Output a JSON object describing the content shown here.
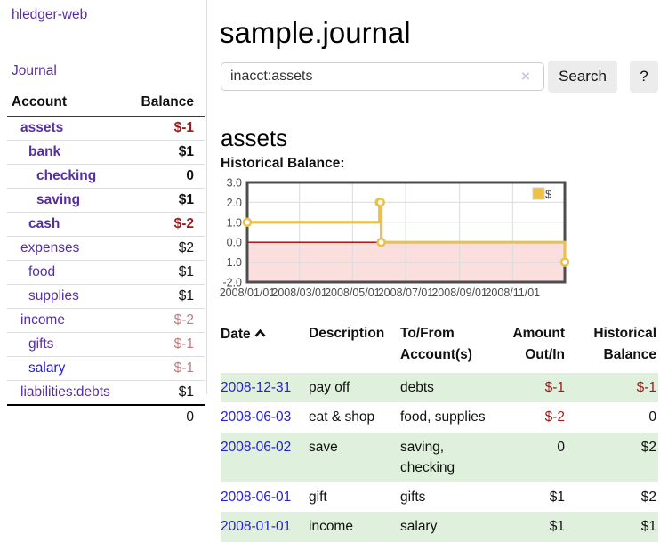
{
  "app_title": "hledger-web",
  "colors": {
    "link_purple": "#55309E",
    "link_blue": "#2721CE",
    "negative_strong": "#9B1C1C",
    "negative_soft": "#C17D7D",
    "row_green": "#DFF0DC",
    "button_gray": "#ECECEC"
  },
  "sidebar": {
    "journal_link": "Journal",
    "columns": {
      "account": "Account",
      "balance": "Balance"
    },
    "accounts": [
      {
        "name": "assets",
        "depth": 0,
        "bold": true,
        "balance": "$-1",
        "balance_class": "neg"
      },
      {
        "name": "bank",
        "depth": 1,
        "bold": true,
        "balance": "$1",
        "balance_class": "pos"
      },
      {
        "name": "checking",
        "depth": 2,
        "bold": true,
        "balance": "0",
        "balance_class": "pos"
      },
      {
        "name": "saving",
        "depth": 2,
        "bold": true,
        "balance": "$1",
        "balance_class": "pos"
      },
      {
        "name": "cash",
        "depth": 1,
        "bold": true,
        "balance": "$-2",
        "balance_class": "neg"
      },
      {
        "name": "expenses",
        "depth": 0,
        "bold": false,
        "balance": "$2",
        "balance_class": "pos"
      },
      {
        "name": "food",
        "depth": 1,
        "bold": false,
        "balance": "$1",
        "balance_class": "pos"
      },
      {
        "name": "supplies",
        "depth": 1,
        "bold": false,
        "balance": "$1",
        "balance_class": "pos"
      },
      {
        "name": "income",
        "depth": 0,
        "bold": false,
        "balance": "$-2",
        "balance_class": "neg-soft"
      },
      {
        "name": "gifts",
        "depth": 1,
        "bold": false,
        "balance": "$-1",
        "balance_class": "neg-soft"
      },
      {
        "name": "salary",
        "depth": 1,
        "bold": false,
        "balance": "$-1",
        "balance_class": "neg-soft",
        "link_blue": true
      },
      {
        "name": "liabilities:debts",
        "depth": 0,
        "bold": false,
        "balance": "$1",
        "balance_class": "pos"
      }
    ],
    "total": "0"
  },
  "main": {
    "title": "sample.journal",
    "search": {
      "value": "inacct:assets",
      "clear_icon": "×",
      "search_button": "Search",
      "help_button": "?"
    },
    "account_heading": "assets",
    "chart_label": "Historical Balance:",
    "register": {
      "columns": [
        "Date",
        "Description",
        "To/From Account(s)",
        "Amount Out/In",
        "Historical Balance"
      ],
      "rows": [
        {
          "date": "2008-12-31",
          "description": "pay off",
          "accounts": "debts",
          "amount": "$-1",
          "amount_class": "neg",
          "balance": "$-1",
          "balance_class": "neg",
          "green": true
        },
        {
          "date": "2008-06-03",
          "description": "eat & shop",
          "accounts": "food, supplies",
          "amount": "$-2",
          "amount_class": "neg",
          "balance": "0",
          "balance_class": "pos",
          "green": false
        },
        {
          "date": "2008-06-02",
          "description": "save",
          "accounts": "saving, checking",
          "amount": "0",
          "amount_class": "pos",
          "balance": "$2",
          "balance_class": "pos",
          "green": true
        },
        {
          "date": "2008-06-01",
          "description": "gift",
          "accounts": "gifts",
          "amount": "$1",
          "amount_class": "pos",
          "balance": "$2",
          "balance_class": "pos",
          "green": false
        },
        {
          "date": "2008-01-01",
          "description": "income",
          "accounts": "salary",
          "amount": "$1",
          "amount_class": "pos",
          "balance": "$1",
          "balance_class": "pos",
          "green": true
        }
      ]
    }
  },
  "chart_data": {
    "type": "line",
    "title": "Historical Balance",
    "step": true,
    "x": [
      "2008-01-01",
      "2008-06-01",
      "2008-06-02",
      "2008-06-03",
      "2008-12-31"
    ],
    "values": [
      1,
      2,
      2,
      0,
      -1
    ],
    "xlim": [
      "2008-01-01",
      "2008-12-31"
    ],
    "ylim": [
      -2,
      3
    ],
    "yticks": [
      {
        "v": 3,
        "label": "3.0"
      },
      {
        "v": 2,
        "label": "2.0"
      },
      {
        "v": 1,
        "label": "1.0"
      },
      {
        "v": 0,
        "label": "0.0"
      },
      {
        "v": -1,
        "label": "-1.0"
      },
      {
        "v": -2,
        "label": "-2.0"
      }
    ],
    "xticks": [
      {
        "date": "2008-01-01",
        "label": "2008/01/01"
      },
      {
        "date": "2008-03-01",
        "label": "2008/03/01"
      },
      {
        "date": "2008-05-01",
        "label": "2008/05/01"
      },
      {
        "date": "2008-07-01",
        "label": "2008/07/01"
      },
      {
        "date": "2008-09-01",
        "label": "2008/09/01"
      },
      {
        "date": "2008-11-01",
        "label": "2008/11/01"
      }
    ],
    "legend": [
      {
        "label": "$",
        "color": "#EDC240"
      }
    ],
    "legend_position": "top-right",
    "grid": true,
    "series_color": "#E8C150",
    "marker_fill": "#ffffff",
    "negative_region_fill": "#FBDFDF",
    "zero_line_color": "#A40000",
    "border_color": "#4D4D4D",
    "grid_color": "#DCDCDC",
    "tick_text_color": "#4A4A4A"
  }
}
